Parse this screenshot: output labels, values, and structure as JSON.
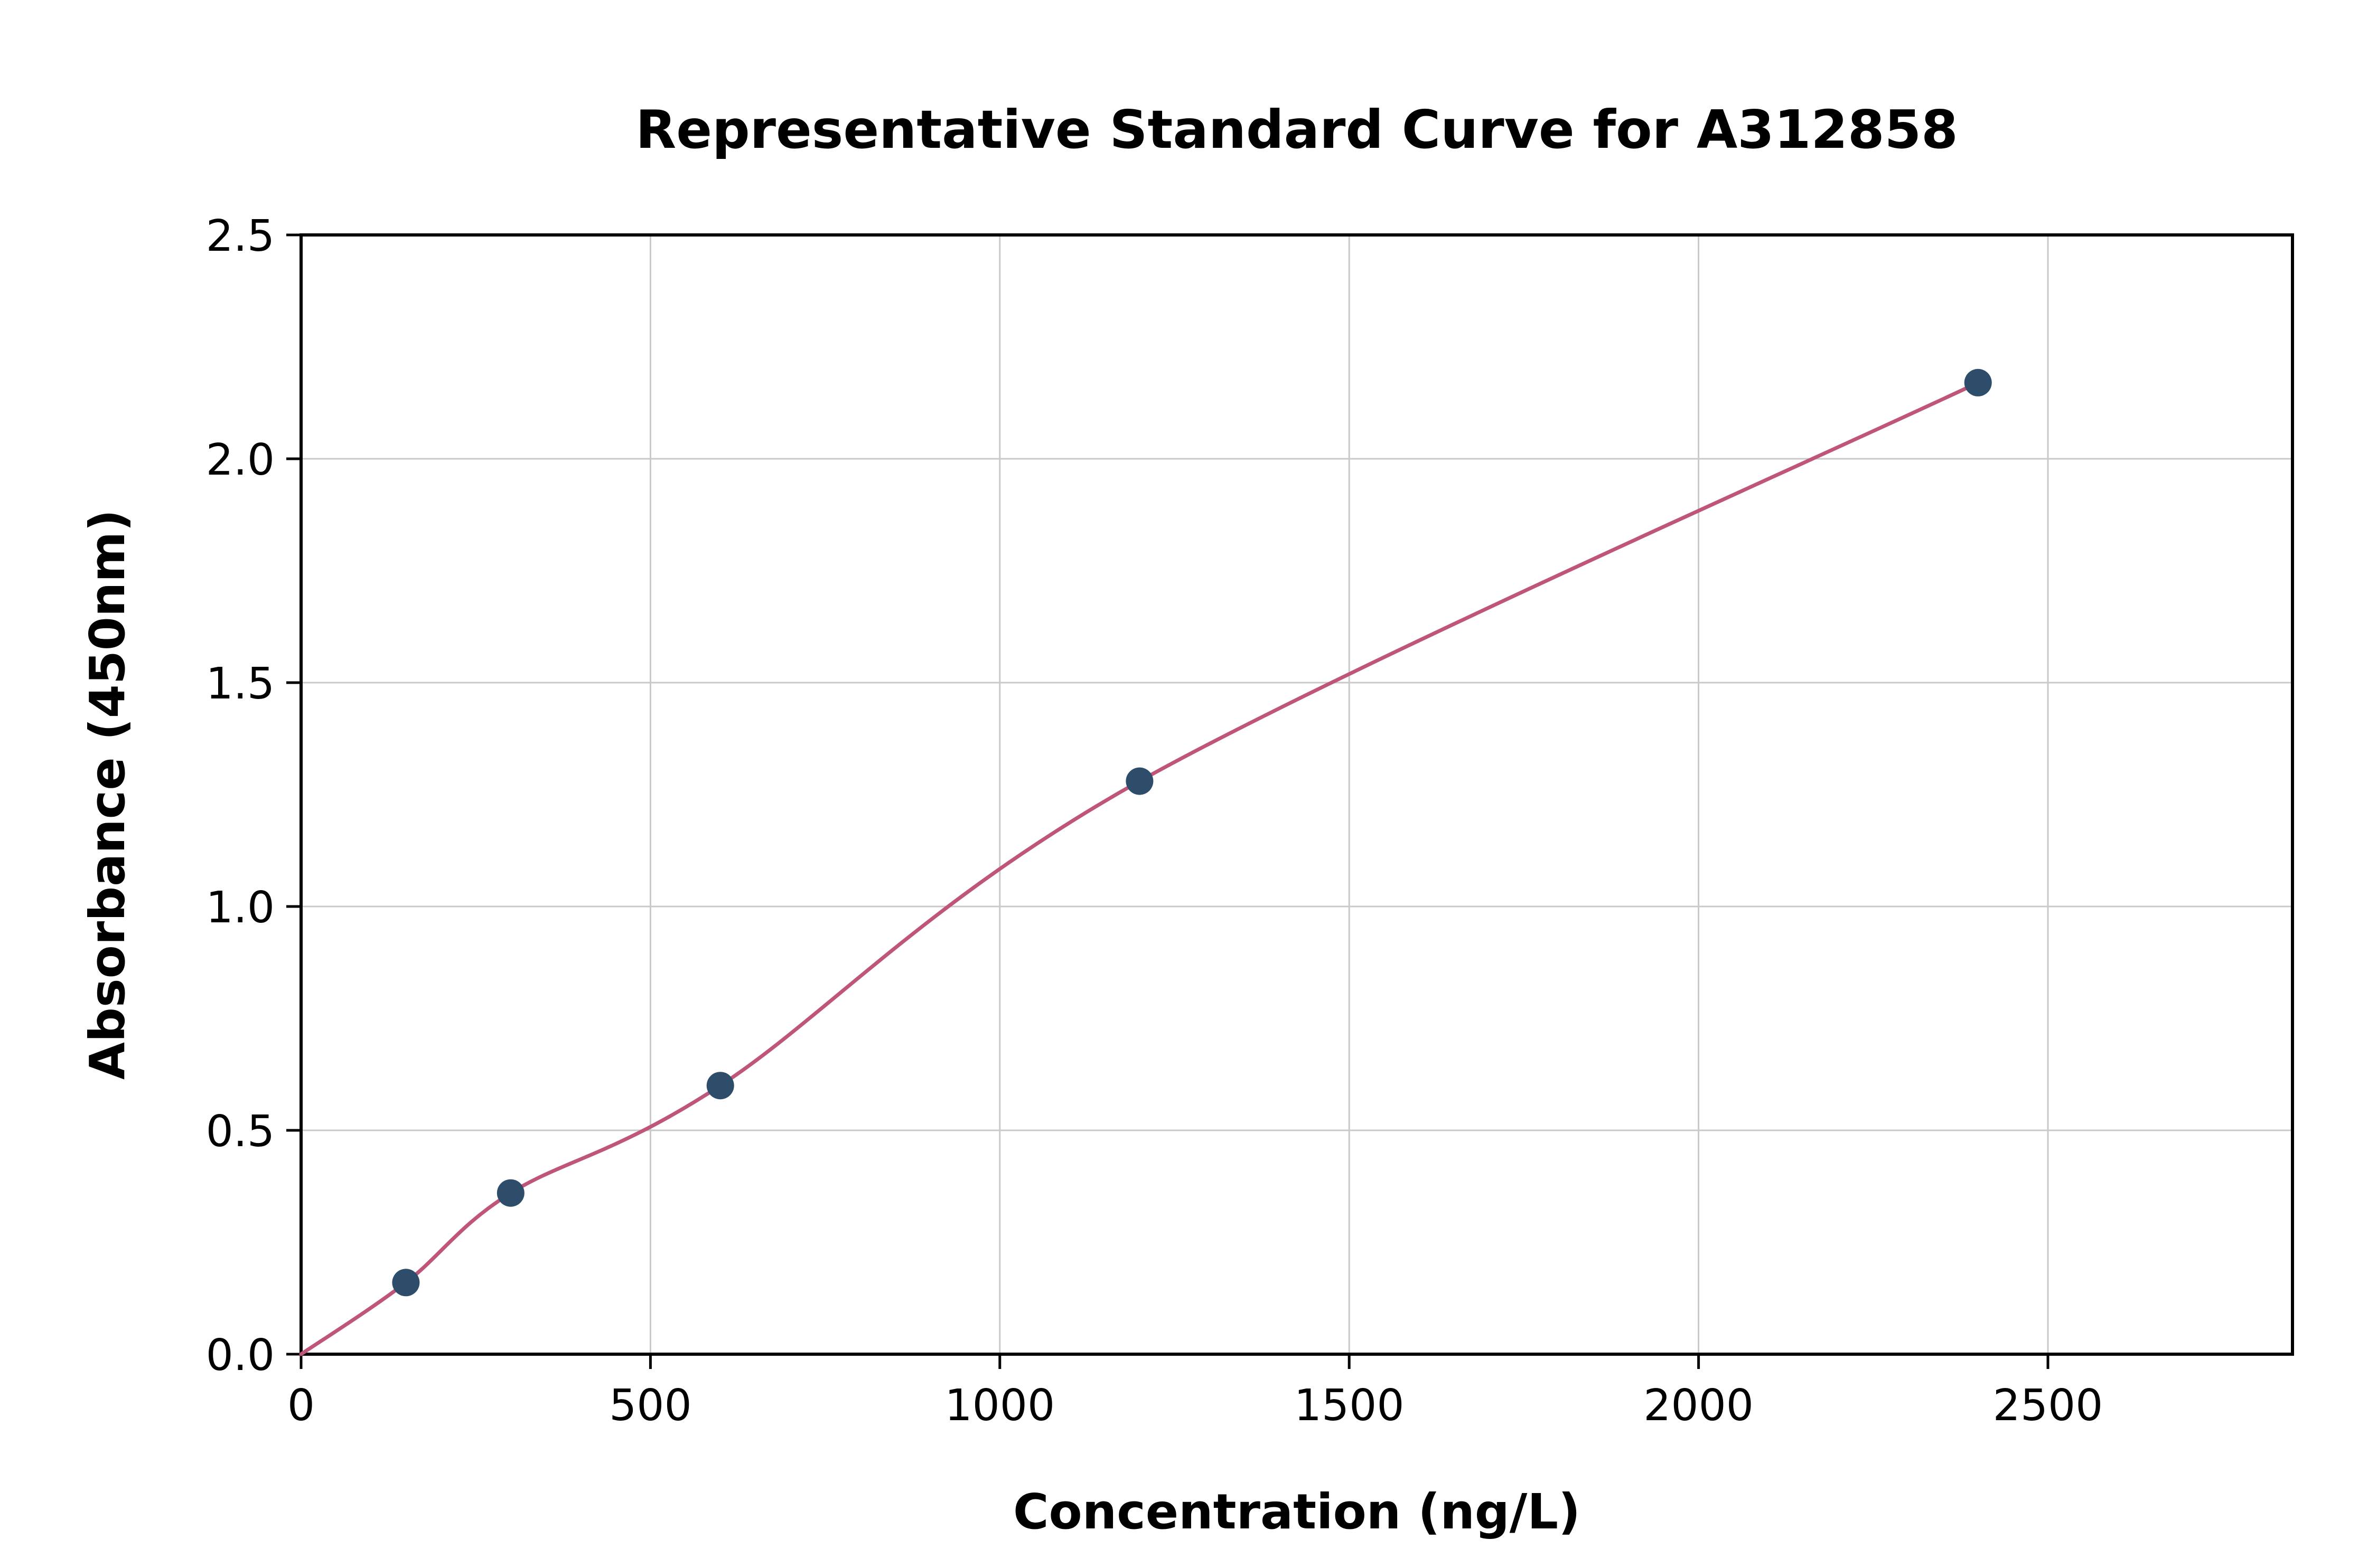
{
  "chart_data": {
    "type": "line",
    "title": "Representative Standard Curve for A312858",
    "xlabel": "Concentration (ng/L)",
    "ylabel": "Absorbance (450nm)",
    "xlim": [
      0,
      2850
    ],
    "ylim": [
      0,
      2.5
    ],
    "x_ticks": [
      0,
      500,
      1000,
      1500,
      2000,
      2500
    ],
    "y_ticks": [
      0.0,
      0.5,
      1.0,
      1.5,
      2.0,
      2.5
    ],
    "grid": true,
    "legend": "none",
    "series": [
      {
        "name": "standard-curve-fit",
        "style": "smooth-line",
        "x": [
          0,
          150,
          300,
          600,
          1200,
          2400
        ],
        "y": [
          0.0,
          0.16,
          0.36,
          0.6,
          1.28,
          2.17
        ]
      },
      {
        "name": "standard-points",
        "style": "scatter",
        "x": [
          150,
          300,
          600,
          1200,
          2400
        ],
        "y": [
          0.16,
          0.36,
          0.6,
          1.28,
          2.17
        ]
      }
    ],
    "colors": {
      "curve": "#c0557a",
      "marker": "#2e4d6b",
      "grid": "#c9c9c9",
      "axis": "#000000",
      "background": "#ffffff"
    }
  }
}
